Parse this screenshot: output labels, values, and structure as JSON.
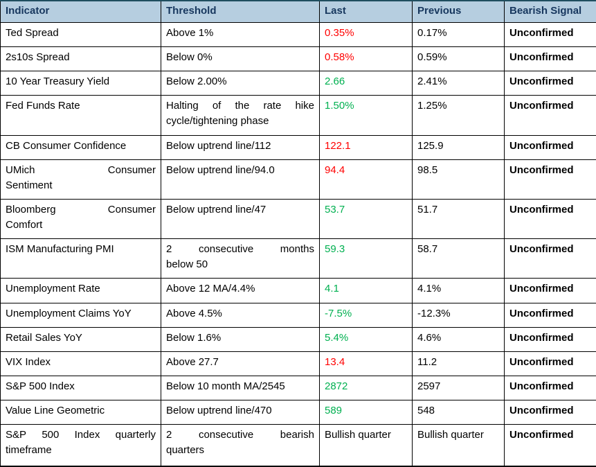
{
  "table": {
    "headers": [
      "Indicator",
      "Threshold",
      "Last",
      "Previous",
      "Bearish Signal"
    ],
    "colors": {
      "header_bg": "#B6CEE0",
      "header_text": "#17375E",
      "top_border": "#1F4E5F",
      "grid_border": "#000000",
      "positive": "#00B050",
      "negative": "#FF0000",
      "neutral": "#000000"
    },
    "rows": [
      {
        "indicator": "Ted Spread",
        "threshold": "Above 1%",
        "last": "0.35%",
        "last_color": "negative",
        "previous": "0.17%",
        "bearish_signal": "Unconfirmed"
      },
      {
        "indicator": "2s10s Spread",
        "threshold": "Below 0%",
        "last": "0.58%",
        "last_color": "negative",
        "previous": "0.59%",
        "bearish_signal": "Unconfirmed"
      },
      {
        "indicator": "10 Year Treasury Yield",
        "threshold": "Below 2.00%",
        "last": "2.66",
        "last_color": "positive",
        "previous": "2.41%",
        "bearish_signal": "Unconfirmed"
      },
      {
        "indicator": "Fed Funds Rate",
        "threshold": [
          "Halting of the rate hike",
          "cycle/tightening phase"
        ],
        "last": "1.50%",
        "last_color": "positive",
        "previous": "1.25%",
        "bearish_signal": "Unconfirmed"
      },
      {
        "indicator": "CB Consumer Confidence",
        "threshold": "Below uptrend line/112",
        "last": "122.1",
        "last_color": "negative",
        "previous": "125.9",
        "bearish_signal": "Unconfirmed"
      },
      {
        "indicator": [
          "UMich Consumer",
          "Sentiment"
        ],
        "threshold": "Below uptrend line/94.0",
        "last": "94.4",
        "last_color": "negative",
        "previous": "98.5",
        "bearish_signal": "Unconfirmed"
      },
      {
        "indicator": [
          "Bloomberg Consumer",
          "Comfort"
        ],
        "threshold": "Below uptrend line/47",
        "last": "53.7",
        "last_color": "positive",
        "previous": "51.7",
        "bearish_signal": "Unconfirmed"
      },
      {
        "indicator": "ISM Manufacturing PMI",
        "threshold": [
          "2 consecutive months",
          "below 50"
        ],
        "last": "59.3",
        "last_color": "positive",
        "previous": "58.7",
        "bearish_signal": "Unconfirmed"
      },
      {
        "indicator": "Unemployment Rate",
        "threshold": "Above 12 MA/4.4%",
        "last": "4.1",
        "last_color": "positive",
        "previous": "4.1%",
        "bearish_signal": "Unconfirmed"
      },
      {
        "indicator": "Unemployment Claims YoY",
        "threshold": "Above 4.5%",
        "last": "-7.5%",
        "last_color": "positive",
        "previous": "-12.3%",
        "bearish_signal": "Unconfirmed"
      },
      {
        "indicator": "Retail Sales YoY",
        "threshold": "Below 1.6%",
        "last": "5.4%",
        "last_color": "positive",
        "previous": "4.6%",
        "bearish_signal": "Unconfirmed"
      },
      {
        "indicator": "VIX Index",
        "threshold": "Above 27.7",
        "last": "13.4",
        "last_color": "negative",
        "previous": "11.2",
        "bearish_signal": "Unconfirmed"
      },
      {
        "indicator": "S&P 500 Index",
        "threshold": "Below 10 month MA/2545",
        "last": "2872",
        "last_color": "positive",
        "previous": "2597",
        "bearish_signal": "Unconfirmed"
      },
      {
        "indicator": "Value Line Geometric",
        "threshold": "Below uptrend line/470",
        "last": "589",
        "last_color": "positive",
        "previous": "548",
        "bearish_signal": "Unconfirmed"
      },
      {
        "indicator": [
          "S&P 500 Index quarterly",
          "timeframe"
        ],
        "threshold": [
          "2 consecutive bearish",
          "quarters"
        ],
        "last": "Bullish quarter",
        "last_color": "neutral",
        "previous": "Bullish quarter",
        "bearish_signal": "Unconfirmed"
      }
    ]
  }
}
